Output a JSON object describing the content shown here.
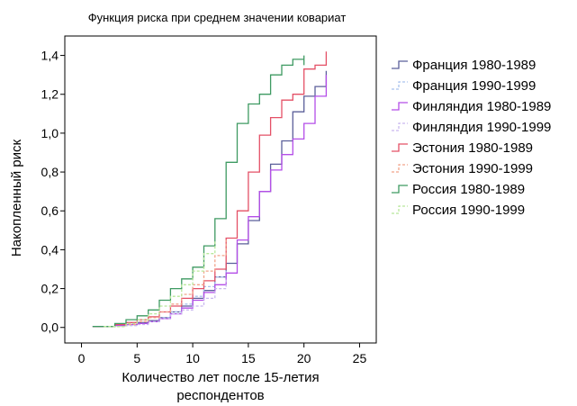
{
  "chart_data": {
    "type": "line",
    "step": true,
    "title": "Функция риска при среднем значении ковариат",
    "xlabel": [
      "Количество лет после 15-летия",
      "респондентов"
    ],
    "ylabel": "Накопленный риск",
    "xlim": [
      -1.5,
      26.5
    ],
    "ylim": [
      -0.08,
      1.5
    ],
    "x_ticks": [
      0,
      5,
      10,
      15,
      20,
      25
    ],
    "x_tick_labels": [
      "0",
      "5",
      "10",
      "15",
      "20",
      "25"
    ],
    "y_ticks": [
      0.0,
      0.2,
      0.4,
      0.6,
      0.8,
      1.0,
      1.2,
      1.4
    ],
    "y_tick_labels": [
      "0,0",
      "0,2",
      "0,4",
      "0,6",
      "0,8",
      "1,0",
      "1,2",
      "1,4"
    ],
    "grid": false,
    "legend_position": "right",
    "series": [
      {
        "name": "Франция 1980-1989",
        "color": "#5b5f9a",
        "dash": "solid",
        "x": [
          1,
          3,
          4,
          5,
          6,
          7,
          8,
          9,
          10,
          11,
          12,
          13,
          14,
          15,
          16,
          17,
          18,
          19,
          20,
          21,
          22,
          22
        ],
        "y": [
          0.005,
          0.01,
          0.015,
          0.025,
          0.035,
          0.05,
          0.08,
          0.11,
          0.15,
          0.19,
          0.26,
          0.33,
          0.43,
          0.55,
          0.7,
          0.84,
          0.96,
          1.11,
          1.19,
          1.24,
          1.29,
          1.32
        ]
      },
      {
        "name": "Франция 1990-1999",
        "color": "#a9c2ee",
        "dash": "dashed",
        "x": [
          2,
          4,
          5,
          6,
          7,
          8,
          9,
          10,
          11,
          12,
          13
        ],
        "y": [
          0.005,
          0.01,
          0.02,
          0.03,
          0.05,
          0.08,
          0.12,
          0.16,
          0.21,
          0.26,
          0.3
        ]
      },
      {
        "name": "Финляндия 1980-1989",
        "color": "#b44ee8",
        "dash": "solid",
        "x": [
          1,
          3,
          4,
          5,
          6,
          7,
          8,
          9,
          10,
          11,
          12,
          13,
          14,
          15,
          16,
          17,
          18,
          19,
          20,
          21,
          22,
          22
        ],
        "y": [
          0.005,
          0.01,
          0.015,
          0.02,
          0.03,
          0.045,
          0.07,
          0.1,
          0.14,
          0.18,
          0.22,
          0.28,
          0.45,
          0.57,
          0.7,
          0.81,
          0.89,
          0.97,
          1.05,
          1.19,
          1.24,
          1.3
        ]
      },
      {
        "name": "Финляндия 1990-1999",
        "color": "#c9b8ef",
        "dash": "dashed",
        "x": [
          2,
          4,
          5,
          6,
          7,
          8,
          9,
          10,
          11,
          12,
          13
        ],
        "y": [
          0.005,
          0.01,
          0.015,
          0.03,
          0.045,
          0.07,
          0.09,
          0.11,
          0.15,
          0.2,
          0.25
        ]
      },
      {
        "name": "Эстония 1980-1989",
        "color": "#e45066",
        "dash": "solid",
        "x": [
          1,
          3,
          4,
          5,
          6,
          7,
          8,
          9,
          10,
          11,
          12,
          13,
          14,
          15,
          16,
          17,
          18,
          19,
          20,
          21,
          22,
          22
        ],
        "y": [
          0.005,
          0.015,
          0.025,
          0.04,
          0.055,
          0.08,
          0.11,
          0.15,
          0.2,
          0.24,
          0.3,
          0.46,
          0.6,
          0.8,
          0.99,
          1.08,
          1.17,
          1.2,
          1.33,
          1.35,
          1.36,
          1.42
        ]
      },
      {
        "name": "Эстония 1990-1999",
        "color": "#f2a38a",
        "dash": "dashed",
        "x": [
          2,
          4,
          5,
          6,
          7,
          8,
          9,
          10,
          11,
          12,
          13
        ],
        "y": [
          0.005,
          0.015,
          0.03,
          0.05,
          0.08,
          0.12,
          0.17,
          0.22,
          0.29,
          0.37,
          0.45
        ]
      },
      {
        "name": "Россия 1980-1989",
        "color": "#3e9a62",
        "dash": "solid",
        "x": [
          1,
          3,
          4,
          5,
          6,
          7,
          8,
          9,
          10,
          11,
          12,
          13,
          14,
          15,
          16,
          17,
          18,
          19,
          20,
          20
        ],
        "y": [
          0.005,
          0.02,
          0.04,
          0.06,
          0.09,
          0.14,
          0.2,
          0.25,
          0.31,
          0.42,
          0.56,
          0.85,
          1.05,
          1.15,
          1.2,
          1.3,
          1.35,
          1.38,
          1.35,
          1.4
        ]
      },
      {
        "name": "Россия 1990-1999",
        "color": "#b8e89b",
        "dash": "dashed",
        "x": [
          2,
          4,
          5,
          6,
          7,
          8,
          9,
          10,
          11,
          12
        ],
        "y": [
          0.005,
          0.02,
          0.04,
          0.07,
          0.11,
          0.16,
          0.22,
          0.29,
          0.38,
          0.45
        ]
      }
    ]
  }
}
